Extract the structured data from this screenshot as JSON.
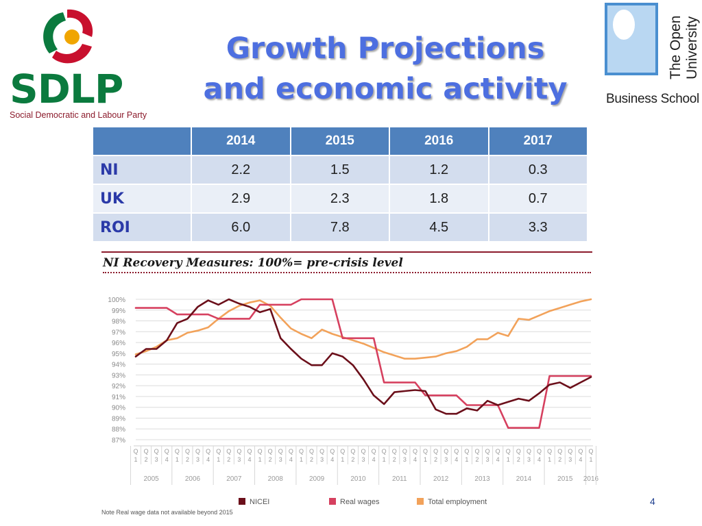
{
  "slide": {
    "title_line1": "Growth Projections",
    "title_line2": "and economic activity",
    "page_number": "4"
  },
  "sdlp_logo": {
    "wordmark": "SDLP",
    "tagline": "Social Democratic and Labour Party",
    "colors": {
      "green": "#0b7a3e",
      "red": "#c8102e",
      "gold": "#f0a500"
    }
  },
  "ou_logo": {
    "name_line1": "The Open",
    "name_line2": "University",
    "business": "Business School",
    "shield_color": "#4a8fd0"
  },
  "table": {
    "headers": [
      "",
      "2014",
      "2015",
      "2016",
      "2017"
    ],
    "rows": [
      {
        "label": "NI",
        "values": [
          "2.2",
          "1.5",
          "1.2",
          "0.3"
        ]
      },
      {
        "label": "UK",
        "values": [
          "2.9",
          "2.3",
          "1.8",
          "0.7"
        ]
      },
      {
        "label": "ROI",
        "values": [
          "6.0",
          "7.8",
          "4.5",
          "3.3"
        ]
      }
    ],
    "header_color": "#4f81bd",
    "row_label_color": "#2b3aa8"
  },
  "chart_data": {
    "type": "line",
    "title": "NI Recovery Measures: 100%= pre-crisis level",
    "note": "Note Real wage data not available beyond 2015",
    "ylim": [
      87,
      100
    ],
    "y_ticks": [
      "87%",
      "88%",
      "89%",
      "90%",
      "91%",
      "92%",
      "93%",
      "94%",
      "95%",
      "96%",
      "97%",
      "98%",
      "99%",
      "100%"
    ],
    "quarter_labels": [
      "Q1",
      "Q2",
      "Q3",
      "Q4",
      "Q1",
      "Q2",
      "Q3",
      "Q4",
      "Q1",
      "Q2",
      "Q3",
      "Q4",
      "Q1",
      "Q2",
      "Q3",
      "Q4",
      "Q1",
      "Q2",
      "Q3",
      "Q4",
      "Q1",
      "Q2",
      "Q3",
      "Q4",
      "Q1",
      "Q2",
      "Q3",
      "Q4",
      "Q1",
      "Q2",
      "Q3",
      "Q4",
      "Q1",
      "Q2",
      "Q3",
      "Q4",
      "Q1",
      "Q2",
      "Q3",
      "Q4",
      "Q1",
      "Q2",
      "Q3",
      "Q4",
      "Q1"
    ],
    "year_labels": [
      "2005",
      "2006",
      "2007",
      "2008",
      "2009",
      "2010",
      "2011",
      "2012",
      "2013",
      "2014",
      "2015",
      "2016"
    ],
    "series": [
      {
        "name": "NICEI",
        "color": "#6b0f1a",
        "values": [
          94.7,
          95.4,
          95.4,
          96.2,
          97.8,
          98.2,
          99.3,
          99.9,
          99.5,
          100,
          99.6,
          99.3,
          98.8,
          99.1,
          96.4,
          95.4,
          94.5,
          93.9,
          93.9,
          95.0,
          94.7,
          93.9,
          92.6,
          91.1,
          90.3,
          91.4,
          91.5,
          91.6,
          91.5,
          89.8,
          89.4,
          89.4,
          89.9,
          89.7,
          90.6,
          90.2,
          90.5,
          90.8,
          90.6,
          91.3,
          92.1,
          92.3,
          91.8,
          92.3,
          92.8
        ]
      },
      {
        "name": "Real wages",
        "color": "#d6405f",
        "values": [
          99.2,
          99.2,
          99.2,
          99.2,
          98.6,
          98.6,
          98.6,
          98.6,
          98.2,
          98.2,
          98.2,
          98.2,
          99.5,
          99.5,
          99.5,
          99.5,
          100,
          100,
          100,
          100,
          96.4,
          96.4,
          96.4,
          96.4,
          92.3,
          92.3,
          92.3,
          92.3,
          91.1,
          91.1,
          91.1,
          91.1,
          90.2,
          90.2,
          90.2,
          90.2,
          88.1,
          88.1,
          88.1,
          88.1,
          92.9,
          92.9,
          92.9,
          92.9,
          92.9
        ]
      },
      {
        "name": "Total employment",
        "color": "#f2a25a",
        "values": [
          94.9,
          95.2,
          95.6,
          96.2,
          96.4,
          96.9,
          97.1,
          97.4,
          98.2,
          98.9,
          99.4,
          99.7,
          99.9,
          99.4,
          98.3,
          97.3,
          96.8,
          96.4,
          97.2,
          96.8,
          96.5,
          96.2,
          95.9,
          95.5,
          95.1,
          94.8,
          94.5,
          94.5,
          94.6,
          94.7,
          95.0,
          95.2,
          95.6,
          96.3,
          96.3,
          96.9,
          96.6,
          98.2,
          98.1,
          98.5,
          98.9,
          99.2,
          99.5,
          99.8,
          100
        ]
      }
    ]
  }
}
